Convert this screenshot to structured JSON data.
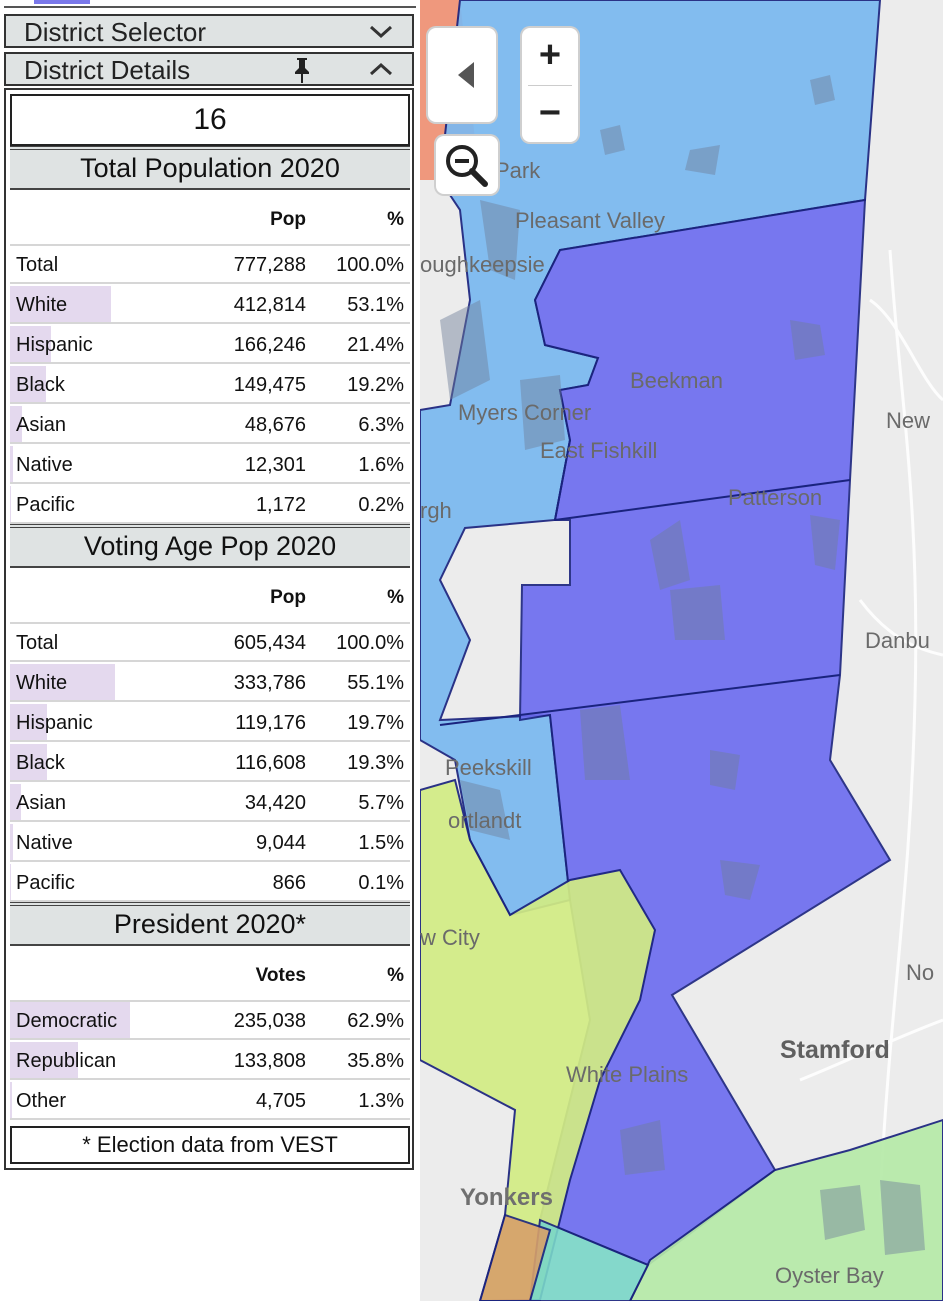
{
  "panel": {
    "selector_title": "District Selector",
    "details_title": "District Details",
    "district_number": "16",
    "sections": [
      {
        "title": "Total Population 2020",
        "col_value": "Pop",
        "col_pct": "%",
        "rows": [
          {
            "label": "Total",
            "value": "777,288",
            "pct": "100.0%",
            "share": 0
          },
          {
            "label": "White",
            "value": "412,814",
            "pct": "53.1%",
            "share": 0.531
          },
          {
            "label": "Hispanic",
            "value": "166,246",
            "pct": "21.4%",
            "share": 0.214
          },
          {
            "label": "Black",
            "value": "149,475",
            "pct": "19.2%",
            "share": 0.192
          },
          {
            "label": "Asian",
            "value": "48,676",
            "pct": "6.3%",
            "share": 0.063
          },
          {
            "label": "Native",
            "value": "12,301",
            "pct": "1.6%",
            "share": 0.016
          },
          {
            "label": "Pacific",
            "value": "1,172",
            "pct": "0.2%",
            "share": 0.002
          }
        ]
      },
      {
        "title": "Voting Age Pop 2020",
        "col_value": "Pop",
        "col_pct": "%",
        "rows": [
          {
            "label": "Total",
            "value": "605,434",
            "pct": "100.0%",
            "share": 0
          },
          {
            "label": "White",
            "value": "333,786",
            "pct": "55.1%",
            "share": 0.551
          },
          {
            "label": "Hispanic",
            "value": "119,176",
            "pct": "19.7%",
            "share": 0.197
          },
          {
            "label": "Black",
            "value": "116,608",
            "pct": "19.3%",
            "share": 0.193
          },
          {
            "label": "Asian",
            "value": "34,420",
            "pct": "5.7%",
            "share": 0.057
          },
          {
            "label": "Native",
            "value": "9,044",
            "pct": "1.5%",
            "share": 0.015
          },
          {
            "label": "Pacific",
            "value": "866",
            "pct": "0.1%",
            "share": 0.001
          }
        ]
      },
      {
        "title": "President 2020*",
        "col_value": "Votes",
        "col_pct": "%",
        "rows": [
          {
            "label": "Democratic",
            "value": "235,038",
            "pct": "62.9%",
            "share": 0.629
          },
          {
            "label": "Republican",
            "value": "133,808",
            "pct": "35.8%",
            "share": 0.358
          },
          {
            "label": "Other",
            "value": "4,705",
            "pct": "1.3%",
            "share": 0.013
          }
        ]
      }
    ],
    "footnote": "* Election data from VEST"
  },
  "map": {
    "zoom_in": "+",
    "zoom_out": "−",
    "place_labels": {
      "park": "Park",
      "pleasant_valley": "Pleasant Valley",
      "poughkeepsie": "oughkeepsie",
      "beekman": "Beekman",
      "myers_corner": "Myers Corner",
      "east_fishkill": "East Fishkill",
      "patterson": "Patterson",
      "new": "New",
      "danbu": "Danbu",
      "peekskill": "Peekskill",
      "cortlandt": "ortlandt",
      "new_city": "w City",
      "no": "No",
      "stamford": "Stamford",
      "white_plains": "White Plains",
      "yonkers": "Yonkers",
      "oyster_bay": "Oyster Bay",
      "rgh": "rgh"
    },
    "colors": {
      "light_blue": "#7ab8f0",
      "purple_blue": "#6b6bf0",
      "yellow_green": "#d2ec84",
      "light_green": "#b6eaa8",
      "salmon": "#f08a6a",
      "boundary": "#1a237e",
      "row_shade": "#e4d9ee"
    }
  }
}
